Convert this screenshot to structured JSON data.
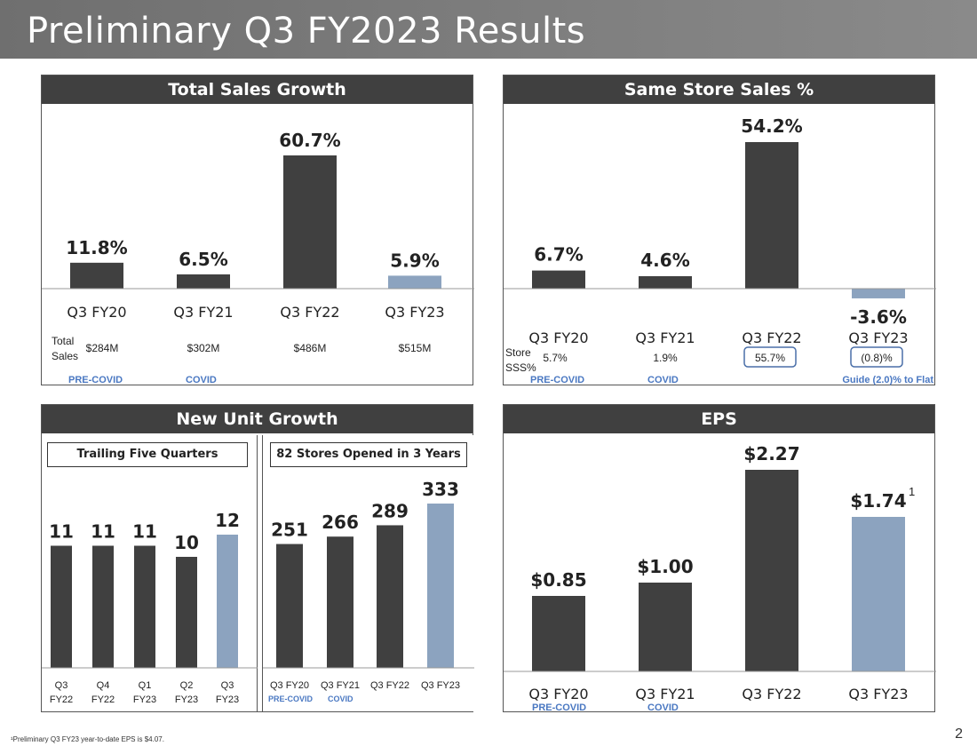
{
  "title": "Preliminary Q3 FY2023 Results",
  "colors": {
    "dark_bar": "#404040",
    "highlight_bar": "#8ca3bf",
    "era_label": "#4a78c2",
    "box_border": "#4a6fa8"
  },
  "chart_data": [
    {
      "type": "bar",
      "title": "Total Sales Growth",
      "unit": "%",
      "categories": [
        "Q3 FY20",
        "Q3 FY21",
        "Q3 FY22",
        "Q3 FY23"
      ],
      "values": [
        11.8,
        6.5,
        60.7,
        5.9
      ],
      "value_labels": [
        "11.8%",
        "6.5%",
        "60.7%",
        "5.9%"
      ],
      "highlight_index": 3,
      "ylim": [
        0,
        70
      ],
      "row_label": "Total Sales",
      "row_values": [
        "$284M",
        "$302M",
        "$486M",
        "$515M"
      ],
      "era_labels": [
        "PRE-COVID",
        "COVID"
      ]
    },
    {
      "type": "bar",
      "title": "Same Store Sales %",
      "unit": "%",
      "categories": [
        "Q3 FY20",
        "Q3 FY21",
        "Q3 FY22",
        "Q3 FY23"
      ],
      "values": [
        6.7,
        4.6,
        54.2,
        -3.6
      ],
      "value_labels": [
        "6.7%",
        "4.6%",
        "54.2%",
        "-3.6%"
      ],
      "highlight_index": 3,
      "ylim": [
        -5,
        60
      ],
      "row_label": "Store SSS%",
      "row_values": [
        "5.7%",
        "1.9%",
        "55.7%",
        "(0.8)%"
      ],
      "boxed_row_values": [
        2,
        3
      ],
      "era_labels": [
        "PRE-COVID",
        "COVID"
      ],
      "guide_note": "Guide (2.0)% to Flat"
    },
    {
      "type": "bar",
      "title": "New Unit Growth",
      "subtitle": "Trailing Five Quarters",
      "categories": [
        "Q3 FY22",
        "Q4 FY22",
        "Q1 FY23",
        "Q2 FY23",
        "Q3 FY23"
      ],
      "category_lines": [
        [
          "Q3",
          "FY22"
        ],
        [
          "Q4",
          "FY22"
        ],
        [
          "Q1",
          "FY23"
        ],
        [
          "Q2",
          "FY23"
        ],
        [
          "Q3",
          "FY23"
        ]
      ],
      "values": [
        11,
        11,
        11,
        10,
        12
      ],
      "value_labels": [
        "11",
        "11",
        "11",
        "10",
        "12"
      ],
      "highlight_index": 4,
      "ylim": [
        0,
        15
      ]
    },
    {
      "type": "bar",
      "title": "New Unit Growth",
      "subtitle": "82 Stores Opened in 3 Years",
      "categories": [
        "Q3 FY20",
        "Q3 FY21",
        "Q3 FY22",
        "Q3 FY23"
      ],
      "values": [
        251,
        266,
        289,
        333
      ],
      "value_labels": [
        "251",
        "266",
        "289",
        "333"
      ],
      "highlight_index": 3,
      "ylim": [
        0,
        400
      ],
      "era_labels": [
        "PRE-COVID",
        "COVID"
      ]
    },
    {
      "type": "bar",
      "title": "EPS",
      "categories": [
        "Q3 FY20",
        "Q3 FY21",
        "Q3 FY22",
        "Q3 FY23"
      ],
      "values": [
        0.85,
        1.0,
        2.27,
        1.74
      ],
      "value_labels": [
        "$0.85",
        "$1.00",
        "$2.27",
        "$1.74"
      ],
      "highlight_index": 3,
      "footnote_marker": "1",
      "ylim": [
        0,
        2.6
      ],
      "era_labels": [
        "PRE-COVID",
        "COVID"
      ]
    }
  ],
  "footnote": "¹Preliminary Q3 FY23 year-to-date EPS is $4.07.",
  "page_number": "2"
}
